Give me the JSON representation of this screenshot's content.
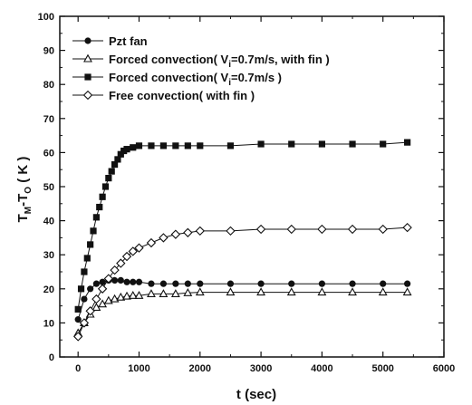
{
  "chart_data": {
    "type": "line",
    "xlabel": "t (sec)",
    "ylabel": {
      "main_1": "T",
      "sub_1": "M",
      "main_2": "-T",
      "sub_2": "O",
      "main_3": " ( K )"
    },
    "xlim": [
      -300,
      6000
    ],
    "ylim": [
      0,
      100
    ],
    "x_ticks": [
      0,
      1000,
      2000,
      3000,
      4000,
      5000,
      6000
    ],
    "y_ticks": [
      0,
      10,
      20,
      30,
      40,
      50,
      60,
      70,
      80,
      90,
      100
    ],
    "legend_position": "top-left",
    "series": [
      {
        "name": "Pzt fan",
        "marker": "circle-filled",
        "color": "#111111",
        "x": [
          0,
          100,
          200,
          300,
          400,
          500,
          600,
          700,
          800,
          900,
          1000,
          1200,
          1400,
          1600,
          1800,
          2000,
          2500,
          3000,
          3500,
          4000,
          4500,
          5000,
          5400
        ],
        "y": [
          11,
          17,
          20,
          21.5,
          22,
          22.5,
          22.5,
          22.5,
          22,
          22,
          22,
          21.5,
          21.5,
          21.5,
          21.5,
          21.5,
          21.5,
          21.5,
          21.5,
          21.5,
          21.5,
          21.5,
          21.5
        ]
      },
      {
        "name": "Forced convection( V",
        "name_sub": "i",
        "name_tail": "=0.7m/s, with fin )",
        "marker": "triangle-open",
        "color": "#111111",
        "x": [
          0,
          100,
          200,
          300,
          400,
          500,
          600,
          700,
          800,
          900,
          1000,
          1200,
          1400,
          1600,
          1800,
          2000,
          2500,
          3000,
          3500,
          4000,
          4500,
          5000,
          5400
        ],
        "y": [
          7,
          10,
          12.5,
          14.5,
          15.5,
          16.5,
          17,
          17.5,
          17.8,
          18,
          18,
          18.5,
          18.5,
          18.5,
          18.8,
          19,
          19,
          19,
          19,
          19,
          19,
          19,
          19
        ]
      },
      {
        "name": "Forced convection( V",
        "name_sub": "i",
        "name_tail": "=0.7m/s )",
        "marker": "square-filled",
        "color": "#111111",
        "x": [
          0,
          50,
          100,
          150,
          200,
          250,
          300,
          350,
          400,
          450,
          500,
          550,
          600,
          650,
          700,
          750,
          800,
          900,
          1000,
          1200,
          1400,
          1600,
          1800,
          2000,
          2500,
          3000,
          3500,
          4000,
          4500,
          5000,
          5400
        ],
        "y": [
          14,
          20,
          25,
          29,
          33,
          37,
          41,
          44,
          47,
          50,
          52.5,
          54.5,
          56.5,
          58,
          59.5,
          60.5,
          61,
          61.5,
          62,
          62,
          62,
          62,
          62,
          62,
          62,
          62.5,
          62.5,
          62.5,
          62.5,
          62.5,
          63
        ]
      },
      {
        "name": "Free convection( with fin )",
        "marker": "diamond-open",
        "color": "#111111",
        "x": [
          0,
          100,
          200,
          300,
          400,
          500,
          600,
          700,
          800,
          900,
          1000,
          1200,
          1400,
          1600,
          1800,
          2000,
          2500,
          3000,
          3500,
          4000,
          4500,
          5000,
          5400
        ],
        "y": [
          6,
          10,
          13.5,
          17,
          20,
          23,
          25.5,
          27.5,
          29.5,
          31,
          32,
          33.5,
          35,
          36,
          36.5,
          37,
          37,
          37.5,
          37.5,
          37.5,
          37.5,
          37.5,
          38
        ]
      }
    ]
  }
}
